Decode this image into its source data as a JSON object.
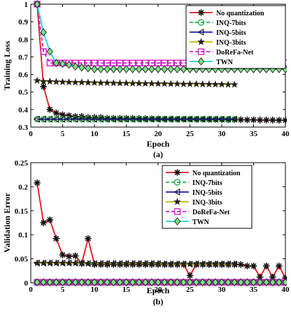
{
  "chart_data": [
    {
      "type": "line",
      "panel_label": "(a)",
      "xlabel": "Epoch",
      "ylabel": "Training Loss",
      "xlim": [
        0,
        40
      ],
      "ylim": [
        0.3,
        1.0
      ],
      "xticks": [
        0,
        5,
        10,
        15,
        20,
        25,
        30,
        35,
        40
      ],
      "yticks": [
        0.3,
        0.4,
        0.5,
        0.6,
        0.7,
        0.8,
        0.9,
        1.0
      ],
      "ytick_labels": [
        "0.3",
        "0.4",
        "0.5",
        "0.6",
        "0.7",
        "0.8",
        "0.9",
        "1"
      ],
      "grid": false,
      "legend_position": "top-right",
      "series": [
        {
          "name": "No quantization",
          "color": "#e8141b",
          "marker": "asterisk",
          "dash": "solid",
          "x": [
            1,
            2,
            3,
            4,
            5,
            6,
            7,
            8,
            9,
            10,
            11,
            12,
            13,
            14,
            15,
            16,
            17,
            18,
            19,
            20,
            21,
            22,
            23,
            24,
            25,
            26,
            27,
            28,
            29,
            30,
            31,
            32,
            33,
            34,
            35,
            36,
            37,
            38,
            39,
            40
          ],
          "y": [
            1.0,
            0.53,
            0.4,
            0.38,
            0.37,
            0.365,
            0.36,
            0.36,
            0.355,
            0.355,
            0.355,
            0.35,
            0.35,
            0.35,
            0.35,
            0.35,
            0.348,
            0.348,
            0.347,
            0.347,
            0.346,
            0.346,
            0.345,
            0.345,
            0.345,
            0.344,
            0.344,
            0.344,
            0.343,
            0.343,
            0.342,
            0.342,
            0.342,
            0.341,
            0.341,
            0.34,
            0.34,
            0.34,
            0.339,
            0.339
          ]
        },
        {
          "name": "INQ-7bits",
          "color": "#21b24b",
          "marker": "circle",
          "dash": "dashed",
          "x": [
            1,
            2,
            3,
            4,
            5,
            6,
            7,
            8,
            9,
            10,
            11,
            12,
            13,
            14,
            15,
            16,
            17,
            18,
            19,
            20,
            21,
            22,
            23,
            24,
            25,
            26,
            27,
            28,
            29,
            30,
            31,
            32
          ],
          "y": [
            0.345,
            0.345,
            0.345,
            0.345,
            0.345,
            0.345,
            0.345,
            0.345,
            0.345,
            0.345,
            0.345,
            0.345,
            0.345,
            0.345,
            0.345,
            0.345,
            0.345,
            0.345,
            0.345,
            0.345,
            0.345,
            0.345,
            0.345,
            0.345,
            0.345,
            0.345,
            0.345,
            0.345,
            0.345,
            0.345,
            0.345,
            0.345
          ]
        },
        {
          "name": "INQ-5bits",
          "color": "#1a1ab4",
          "marker": "triangle-left",
          "dash": "solid",
          "x": [
            1,
            2,
            3,
            4,
            5,
            6,
            7,
            8,
            9,
            10,
            11,
            12,
            13,
            14,
            15,
            16,
            17,
            18,
            19,
            20,
            21,
            22,
            23,
            24,
            25,
            26,
            27,
            28,
            29,
            30,
            31,
            32
          ],
          "y": [
            0.345,
            0.345,
            0.345,
            0.345,
            0.345,
            0.345,
            0.345,
            0.345,
            0.345,
            0.345,
            0.345,
            0.345,
            0.345,
            0.345,
            0.345,
            0.345,
            0.345,
            0.345,
            0.345,
            0.345,
            0.345,
            0.345,
            0.345,
            0.345,
            0.345,
            0.345,
            0.345,
            0.345,
            0.345,
            0.345,
            0.345,
            0.345
          ]
        },
        {
          "name": "INQ-3bits",
          "color": "#c8b400",
          "marker": "star",
          "dash": "solid",
          "x": [
            1,
            2,
            3,
            4,
            5,
            6,
            7,
            8,
            9,
            10,
            11,
            12,
            13,
            14,
            15,
            16,
            17,
            18,
            19,
            20,
            21,
            22,
            23,
            24,
            25,
            26,
            27,
            28,
            29,
            30,
            31,
            32
          ],
          "y": [
            0.565,
            0.56,
            0.56,
            0.558,
            0.557,
            0.556,
            0.555,
            0.555,
            0.554,
            0.553,
            0.552,
            0.552,
            0.551,
            0.55,
            0.55,
            0.549,
            0.549,
            0.548,
            0.548,
            0.547,
            0.547,
            0.546,
            0.546,
            0.545,
            0.545,
            0.545,
            0.544,
            0.544,
            0.543,
            0.543,
            0.542,
            0.542
          ]
        },
        {
          "name": "DoReFa-Net",
          "color": "#d21fc8",
          "marker": "square",
          "dash": "dashed",
          "x": [
            1,
            2,
            3,
            4,
            5,
            6,
            7,
            8,
            9,
            10,
            11,
            12,
            13,
            14,
            15,
            16,
            17,
            18,
            19,
            20,
            21,
            22,
            23,
            24,
            25,
            26,
            27,
            28,
            29,
            30,
            31,
            32,
            33,
            34,
            35,
            36,
            37,
            38,
            39,
            40
          ],
          "y": [
            1.0,
            0.73,
            0.665,
            0.665,
            0.665,
            0.665,
            0.665,
            0.665,
            0.665,
            0.665,
            0.665,
            0.665,
            0.665,
            0.665,
            0.665,
            0.665,
            0.665,
            0.665,
            0.665,
            0.665,
            0.665,
            0.665,
            0.665,
            0.665,
            0.665,
            0.665,
            0.665,
            0.665,
            0.665,
            0.665,
            0.665,
            0.665,
            0.665,
            0.665,
            0.665,
            0.665,
            0.665,
            0.665,
            0.665,
            0.665
          ]
        },
        {
          "name": "TWN",
          "color": "#1ad6e0",
          "marker": "diamond",
          "dash": "solid",
          "x": [
            1,
            2,
            3,
            4,
            5,
            6,
            7,
            8,
            9,
            10,
            11,
            12,
            13,
            14,
            15,
            16,
            17,
            18,
            19,
            20,
            21,
            22,
            23,
            24,
            25,
            26,
            27,
            28,
            29,
            30,
            31,
            32,
            33,
            34,
            35,
            36,
            37,
            38,
            39,
            40
          ],
          "y": [
            1.0,
            0.84,
            0.73,
            0.665,
            0.66,
            0.655,
            0.645,
            0.64,
            0.635,
            0.63,
            0.63,
            0.63,
            0.63,
            0.63,
            0.63,
            0.63,
            0.63,
            0.63,
            0.63,
            0.63,
            0.63,
            0.63,
            0.63,
            0.63,
            0.63,
            0.63,
            0.63,
            0.63,
            0.63,
            0.63,
            0.63,
            0.63,
            0.63,
            0.63,
            0.63,
            0.63,
            0.63,
            0.63,
            0.63,
            0.63
          ]
        }
      ]
    },
    {
      "type": "line",
      "panel_label": "(b)",
      "xlabel": "Epoch",
      "ylabel": "Validation Error",
      "xlim": [
        0,
        40
      ],
      "ylim": [
        0,
        0.25
      ],
      "xticks": [
        0,
        5,
        10,
        15,
        20,
        25,
        30,
        35,
        40
      ],
      "yticks": [
        0,
        0.05,
        0.1,
        0.15,
        0.2,
        0.25
      ],
      "ytick_labels": [
        "0",
        "0.05",
        "0.1",
        "0.15",
        "0.2",
        "0.25"
      ],
      "grid": false,
      "legend_position": "top-right",
      "series": [
        {
          "name": "No quantization",
          "color": "#e8141b",
          "marker": "asterisk",
          "dash": "solid",
          "x": [
            1,
            2,
            3,
            4,
            5,
            6,
            7,
            8,
            9,
            10,
            11,
            12,
            13,
            14,
            15,
            16,
            17,
            18,
            19,
            20,
            21,
            22,
            23,
            24,
            25,
            26,
            27,
            28,
            29,
            30,
            31,
            32,
            33,
            34,
            35,
            36,
            37,
            38,
            39,
            40
          ],
          "y": [
            0.208,
            0.125,
            0.131,
            0.092,
            0.058,
            0.055,
            0.056,
            0.04,
            0.092,
            0.038,
            0.038,
            0.038,
            0.038,
            0.038,
            0.038,
            0.038,
            0.038,
            0.038,
            0.038,
            0.038,
            0.038,
            0.038,
            0.038,
            0.038,
            0.015,
            0.038,
            0.038,
            0.038,
            0.038,
            0.038,
            0.038,
            0.038,
            0.038,
            0.035,
            0.035,
            0.012,
            0.035,
            0.012,
            0.035,
            0.01
          ]
        },
        {
          "name": "INQ-7bits",
          "color": "#21b24b",
          "marker": "circle",
          "dash": "dashed",
          "x": [
            1,
            2,
            3,
            4,
            5,
            6,
            7,
            8,
            9,
            10,
            11,
            12,
            13,
            14,
            15,
            16,
            17,
            18,
            19,
            20,
            21,
            22,
            23,
            24,
            25,
            26,
            27,
            28,
            29,
            30,
            31,
            32,
            33,
            34,
            35,
            36,
            37,
            38,
            39,
            40
          ],
          "y": [
            0.001,
            0.001,
            0.001,
            0.001,
            0.001,
            0.001,
            0.001,
            0.001,
            0.001,
            0.001,
            0.001,
            0.001,
            0.001,
            0.001,
            0.001,
            0.001,
            0.001,
            0.001,
            0.001,
            0.001,
            0.001,
            0.001,
            0.001,
            0.001,
            0.001,
            0.001,
            0.001,
            0.001,
            0.001,
            0.001,
            0.001,
            0.001,
            0.001,
            0.001,
            0.001,
            0.001,
            0.001,
            0.001,
            0.001,
            0.001
          ]
        },
        {
          "name": "INQ-5bits",
          "color": "#1a1ab4",
          "marker": "triangle-left",
          "dash": "solid",
          "x": [
            1,
            2,
            3,
            4,
            5,
            6,
            7,
            8,
            9,
            10,
            11,
            12,
            13,
            14,
            15,
            16,
            17,
            18,
            19,
            20,
            21,
            22,
            23,
            24,
            25,
            26,
            27,
            28,
            29,
            30,
            31,
            32
          ],
          "y": [
            0.041,
            0.041,
            0.041,
            0.041,
            0.041,
            0.041,
            0.041,
            0.041,
            0.04,
            0.04,
            0.04,
            0.04,
            0.04,
            0.04,
            0.04,
            0.04,
            0.04,
            0.04,
            0.04,
            0.04,
            0.039,
            0.039,
            0.039,
            0.039,
            0.039,
            0.039,
            0.039,
            0.039,
            0.039,
            0.039,
            0.039,
            0.039
          ]
        },
        {
          "name": "INQ-3bits",
          "color": "#c8b400",
          "marker": "star",
          "dash": "solid",
          "x": [
            1,
            2,
            3,
            4,
            5,
            6,
            7,
            8,
            9,
            10,
            11,
            12,
            13,
            14,
            15,
            16,
            17,
            18,
            19,
            20,
            21,
            22,
            23,
            24,
            25,
            26,
            27,
            28,
            29,
            30,
            31,
            32
          ],
          "y": [
            0.041,
            0.041,
            0.041,
            0.041,
            0.041,
            0.041,
            0.041,
            0.041,
            0.04,
            0.04,
            0.04,
            0.04,
            0.04,
            0.04,
            0.04,
            0.04,
            0.04,
            0.04,
            0.04,
            0.04,
            0.039,
            0.039,
            0.039,
            0.039,
            0.039,
            0.039,
            0.039,
            0.039,
            0.039,
            0.039,
            0.039,
            0.039
          ]
        },
        {
          "name": "DoReFa-Net",
          "color": "#d21fc8",
          "marker": "square",
          "dash": "dashed",
          "x": [
            1,
            2,
            3,
            4,
            5,
            6,
            7,
            8,
            9,
            10,
            11,
            12,
            13,
            14,
            15,
            16,
            17,
            18,
            19,
            20,
            21,
            22,
            23,
            24,
            25,
            26,
            27,
            28,
            29,
            30,
            31,
            32,
            33,
            34,
            35,
            36,
            37,
            38,
            39,
            40
          ],
          "y": [
            0.001,
            0.001,
            0.001,
            0.001,
            0.001,
            0.001,
            0.001,
            0.001,
            0.001,
            0.001,
            0.001,
            0.001,
            0.001,
            0.001,
            0.001,
            0.001,
            0.001,
            0.001,
            0.001,
            0.001,
            0.001,
            0.001,
            0.001,
            0.001,
            0.001,
            0.001,
            0.001,
            0.001,
            0.001,
            0.001,
            0.001,
            0.001,
            0.001,
            0.001,
            0.001,
            0.001,
            0.001,
            0.001,
            0.001,
            0.001
          ]
        },
        {
          "name": "TWN",
          "color": "#1ad6e0",
          "marker": "diamond",
          "dash": "solid",
          "x": [
            1,
            2,
            3,
            4,
            5,
            6,
            7,
            8,
            9,
            10,
            11,
            12,
            13,
            14,
            15,
            16,
            17,
            18,
            19,
            20,
            21,
            22,
            23,
            24,
            25,
            26,
            27,
            28,
            29,
            30,
            31,
            32,
            33,
            34,
            35,
            36,
            37,
            38,
            39,
            40
          ],
          "y": [
            0.001,
            0.001,
            0.001,
            0.001,
            0.001,
            0.001,
            0.001,
            0.001,
            0.001,
            0.001,
            0.001,
            0.001,
            0.001,
            0.001,
            0.001,
            0.001,
            0.001,
            0.001,
            0.001,
            0.001,
            0.001,
            0.001,
            0.001,
            0.001,
            0.001,
            0.001,
            0.001,
            0.001,
            0.001,
            0.001,
            0.001,
            0.001,
            0.001,
            0.001,
            0.001,
            0.001,
            0.001,
            0.001,
            0.001,
            0.001
          ]
        }
      ]
    }
  ]
}
